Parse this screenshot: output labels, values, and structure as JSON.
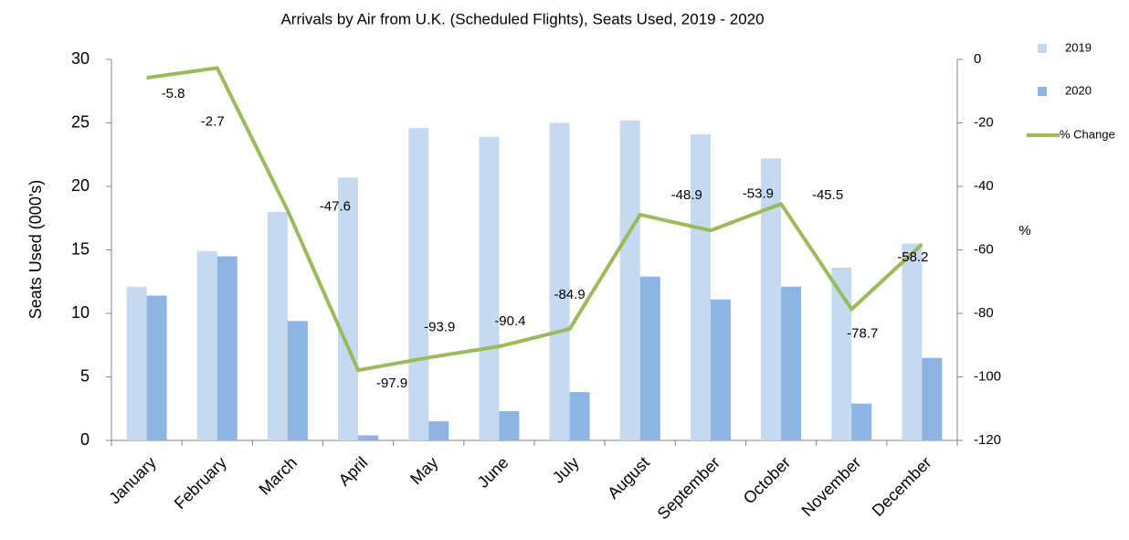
{
  "chart_data": {
    "type": "bar-line",
    "title": "Arrivals by Air from U.K. (Scheduled Flights), Seats Used, 2019 - 2020",
    "y_label": "Seats Used (000's)",
    "y2_label": "%",
    "categories": [
      "January",
      "February",
      "March",
      "April",
      "May",
      "June",
      "July",
      "August",
      "September",
      "October",
      "November",
      "December"
    ],
    "series": [
      {
        "name": "2019",
        "type": "bar",
        "color": "#c5d9f1",
        "values": [
          12.1,
          14.9,
          18.0,
          20.7,
          24.6,
          23.9,
          25.0,
          25.2,
          24.1,
          22.2,
          13.6,
          15.5
        ]
      },
      {
        "name": "2020",
        "type": "bar",
        "color": "#8db4e2",
        "values": [
          11.4,
          14.5,
          9.4,
          0.4,
          1.5,
          2.3,
          3.8,
          12.9,
          11.1,
          12.1,
          2.9,
          6.5
        ]
      },
      {
        "name": "% Change",
        "type": "line",
        "axis": "y2",
        "color": "#9bbb59",
        "values": [
          -5.8,
          -2.7,
          -47.6,
          -97.9,
          -93.9,
          -90.4,
          -84.9,
          -48.9,
          -53.9,
          -45.5,
          -78.7,
          -58.2
        ]
      }
    ],
    "ylim": [
      0,
      30
    ],
    "yticks": [
      0,
      5,
      10,
      15,
      20,
      25,
      30
    ],
    "y2lim": [
      -120,
      0
    ],
    "y2ticks": [
      -120,
      -100,
      -80,
      -60,
      -40,
      -20,
      0
    ],
    "legend": "right"
  }
}
